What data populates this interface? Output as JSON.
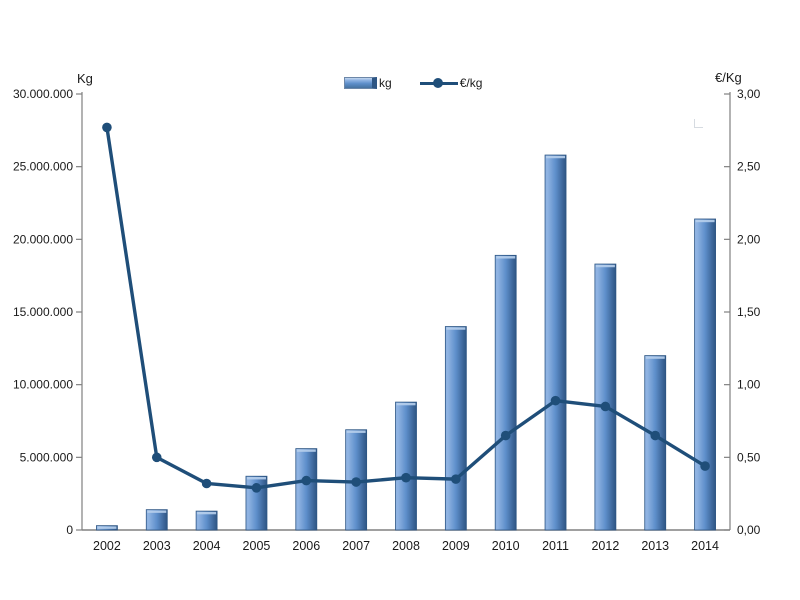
{
  "chart_data": {
    "type": "bar",
    "title": "",
    "categories": [
      "2002",
      "2003",
      "2004",
      "2005",
      "2006",
      "2007",
      "2008",
      "2009",
      "2010",
      "2011",
      "2012",
      "2013",
      "2014"
    ],
    "series": [
      {
        "name": "kg",
        "chart": "bar",
        "axis": "left",
        "values": [
          300000,
          1400000,
          1300000,
          3700000,
          5600000,
          6900000,
          8800000,
          14000000,
          18900000,
          25800000,
          18300000,
          12000000,
          21400000
        ]
      },
      {
        "name": "€/kg",
        "chart": "line",
        "axis": "right",
        "values": [
          2.77,
          0.5,
          0.32,
          0.29,
          0.34,
          0.33,
          0.36,
          0.35,
          0.65,
          0.89,
          0.85,
          0.65,
          0.44
        ]
      }
    ],
    "left_axis": {
      "title": "Kg",
      "min": 0,
      "max": 30000000,
      "tick_labels": [
        "0",
        "5.000.000",
        "10.000.000",
        "15.000.000",
        "20.000.000",
        "25.000.000",
        "30.000.000"
      ]
    },
    "right_axis": {
      "title": "€/Kg",
      "min": 0,
      "max": 3,
      "tick_labels": [
        "0,00",
        "0,50",
        "1,00",
        "1,50",
        "2,00",
        "2,50",
        "3,00"
      ]
    },
    "legend": {
      "position": "top",
      "entries": [
        {
          "label": "kg",
          "marker": "bar-swatch"
        },
        {
          "label": "€/kg",
          "marker": "line-with-dot"
        }
      ]
    },
    "grid": false,
    "colors": {
      "bar_fill_light": "#8fb3e2",
      "bar_fill_mid": "#5e8fcb",
      "bar_fill_dark": "#3c6598",
      "bar_border": "#2e5684",
      "bar_top_highlight": "#b7cfec",
      "line": "#1f4e79",
      "axis_line": "#808080",
      "text": "#1a1a1a"
    }
  }
}
